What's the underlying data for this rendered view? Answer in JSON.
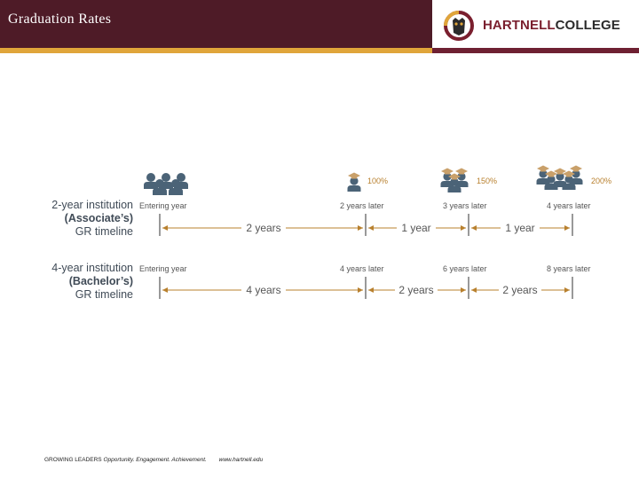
{
  "header": {
    "title": "Graduation Rates"
  },
  "logo": {
    "part1": "HARTNELL",
    "part2": "COLLEGE"
  },
  "diagram": {
    "rates": [
      "100%",
      "150%",
      "200%"
    ],
    "rows": [
      {
        "label_line1": "2-year institution",
        "label_line2": "(Associate’s)",
        "label_line3": "GR timeline",
        "col_labels": [
          "Entering year",
          "2 years later",
          "3 years later",
          "4 years later"
        ],
        "spans": [
          "2 years",
          "1 year",
          "1 year"
        ]
      },
      {
        "label_line1": "4-year institution",
        "label_line2": "(Bachelor’s)",
        "label_line3": "GR timeline",
        "col_labels": [
          "Entering year",
          "4 years later",
          "6 years later",
          "8 years later"
        ],
        "spans": [
          "4 years",
          "2 years",
          "2 years"
        ]
      }
    ],
    "colors": {
      "people": "#4b6377",
      "cap": "#c9a06a",
      "accent": "#b8802e",
      "line": "#333333"
    }
  },
  "footer": {
    "lead": "GROWING LEADERS",
    "tagline": "Opportunity. Engagement. Achievement.",
    "url": "www.hartnell.edu"
  }
}
